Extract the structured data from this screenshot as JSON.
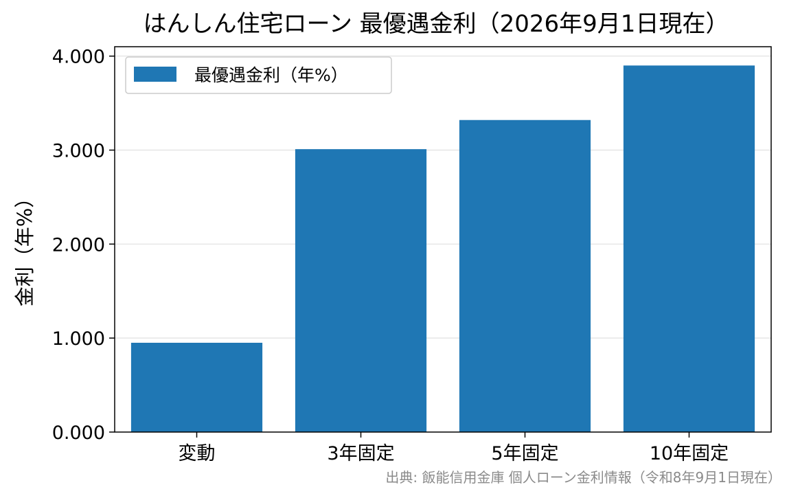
{
  "chart_data": {
    "type": "bar",
    "title": "はんしん住宅ローン 最優遇金利（2026年9月1日現在）",
    "xlabel": "",
    "ylabel": "金利（年%）",
    "categories": [
      "変動",
      "3年固定",
      "5年固定",
      "10年固定"
    ],
    "series": [
      {
        "name": "最優遇金利（年%）",
        "values": [
          0.95,
          3.01,
          3.32,
          3.9
        ],
        "color": "#1f77b4"
      }
    ],
    "ylim": [
      0,
      4.1
    ],
    "yticks": [
      0,
      1,
      2,
      3,
      4
    ],
    "ytick_labels": [
      "0.000",
      "1.000",
      "2.000",
      "3.000",
      "4.000"
    ],
    "grid": "horizontal",
    "legend_position": "upper-left"
  },
  "source_note": "出典: 飯能信用金庫 個人ローン金利情報（令和8年9月1日現在）"
}
